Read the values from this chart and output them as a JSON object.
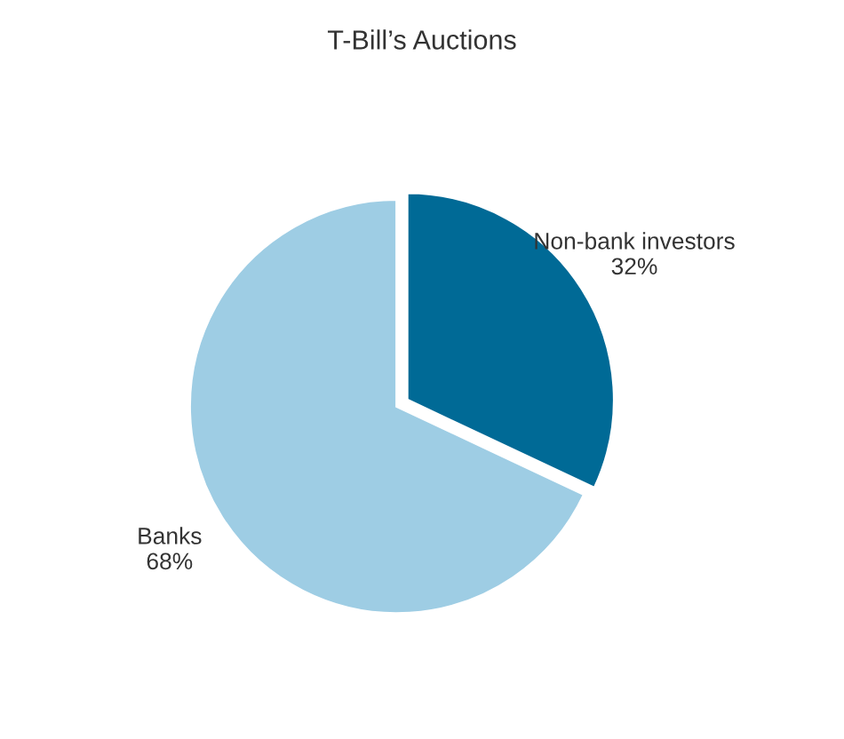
{
  "chart_data": {
    "type": "pie",
    "title": "T-Bill’s Auctions",
    "categories": [
      "Non-bank investors",
      "Banks"
    ],
    "values": [
      32,
      68
    ],
    "colors": [
      "#006a96",
      "#9ecde4"
    ],
    "value_labels": [
      "32%",
      "68%"
    ]
  }
}
